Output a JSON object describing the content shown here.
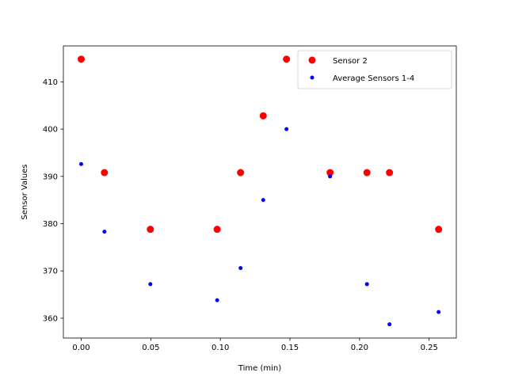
{
  "chart_data": {
    "type": "scatter",
    "title": "",
    "xlabel": "Time (min)",
    "ylabel": "Sensor Values",
    "xlim": [
      -0.0128,
      0.2695
    ],
    "ylim": [
      355.8,
      417.6
    ],
    "xticks": [
      0.0,
      0.05,
      0.1,
      0.15,
      0.2,
      0.25
    ],
    "xtick_labels": [
      "0.00",
      "0.05",
      "0.10",
      "0.15",
      "0.20",
      "0.25"
    ],
    "yticks": [
      360,
      370,
      380,
      390,
      400,
      410
    ],
    "ytick_labels": [
      "360",
      "370",
      "380",
      "390",
      "400",
      "410"
    ],
    "grid": false,
    "legend_position": "top-right",
    "series": [
      {
        "name": "Sensor 2",
        "color": "#ff0000",
        "marker": "large-dot",
        "x": [
          0.0,
          0.0167,
          0.0497,
          0.0977,
          0.1145,
          0.1308,
          0.1475,
          0.1788,
          0.2053,
          0.2215,
          0.2568
        ],
        "y": [
          414.8,
          390.8,
          378.8,
          378.8,
          390.8,
          402.8,
          414.8,
          390.8,
          390.8,
          390.8,
          378.8
        ]
      },
      {
        "name": "Average Sensors 1-4",
        "color": "#0000ff",
        "marker": "small-dot",
        "x": [
          0.0,
          0.0167,
          0.0497,
          0.0977,
          0.1145,
          0.1308,
          0.1475,
          0.1788,
          0.2053,
          0.2215,
          0.2568
        ],
        "y": [
          392.6,
          378.3,
          367.2,
          363.8,
          370.6,
          385.0,
          400.0,
          390.0,
          367.2,
          358.7,
          361.3
        ]
      }
    ]
  }
}
